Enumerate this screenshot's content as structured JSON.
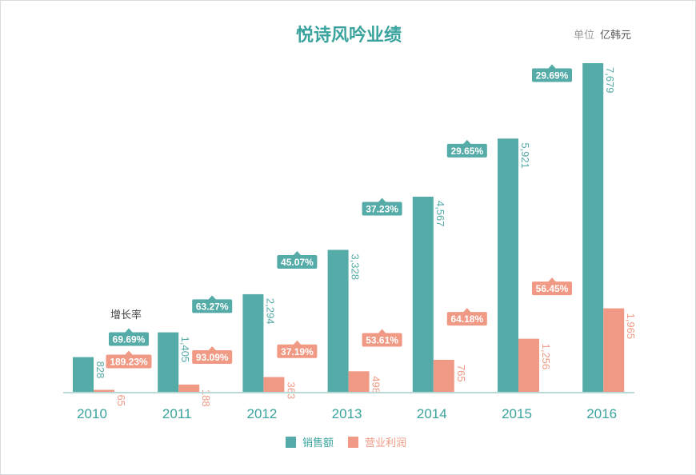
{
  "header": {
    "title": "悦诗风吟业绩",
    "unit_label": "单位",
    "unit_value": "亿韩元"
  },
  "annotation": {
    "growth_note": "增长率"
  },
  "legend": {
    "sales_label": "销售额",
    "profit_label": "营业利润"
  },
  "colors": {
    "sales": "#55aba7",
    "profit": "#f09a85",
    "axis": "#b9d9d7",
    "title": "#3aa39d",
    "unit_label": "#9a9a9a",
    "unit_value": "#555555"
  },
  "chart_data": {
    "type": "bar",
    "title": "悦诗风吟业绩",
    "unit": "亿韩元",
    "categories": [
      "2010",
      "2011",
      "2012",
      "2013",
      "2014",
      "2015",
      "2016"
    ],
    "ylim": [
      0,
      7679
    ],
    "grid": false,
    "legend_position": "bottom-center",
    "series": [
      {
        "name": "销售额",
        "color": "#55aba7",
        "values": [
          828,
          1405,
          2294,
          3328,
          4567,
          5921,
          7679
        ],
        "value_labels": [
          "828",
          "1,405",
          "2,294",
          "3,328",
          "4,567",
          "5,921",
          "7,679"
        ],
        "growth_labels": [
          "69.69%",
          "63.27%",
          "45.07%",
          "37.23%",
          "29.65%",
          "29.69%"
        ]
      },
      {
        "name": "营业利润",
        "color": "#f09a85",
        "values": [
          65,
          188,
          363,
          498,
          765,
          1256,
          1965
        ],
        "value_labels": [
          "65",
          "188",
          "363",
          "498",
          "765",
          "1,256",
          "1,965"
        ],
        "growth_labels": [
          "189.23%",
          "93.09%",
          "37.19%",
          "53.61%",
          "64.18%",
          "56.45%"
        ]
      }
    ]
  }
}
